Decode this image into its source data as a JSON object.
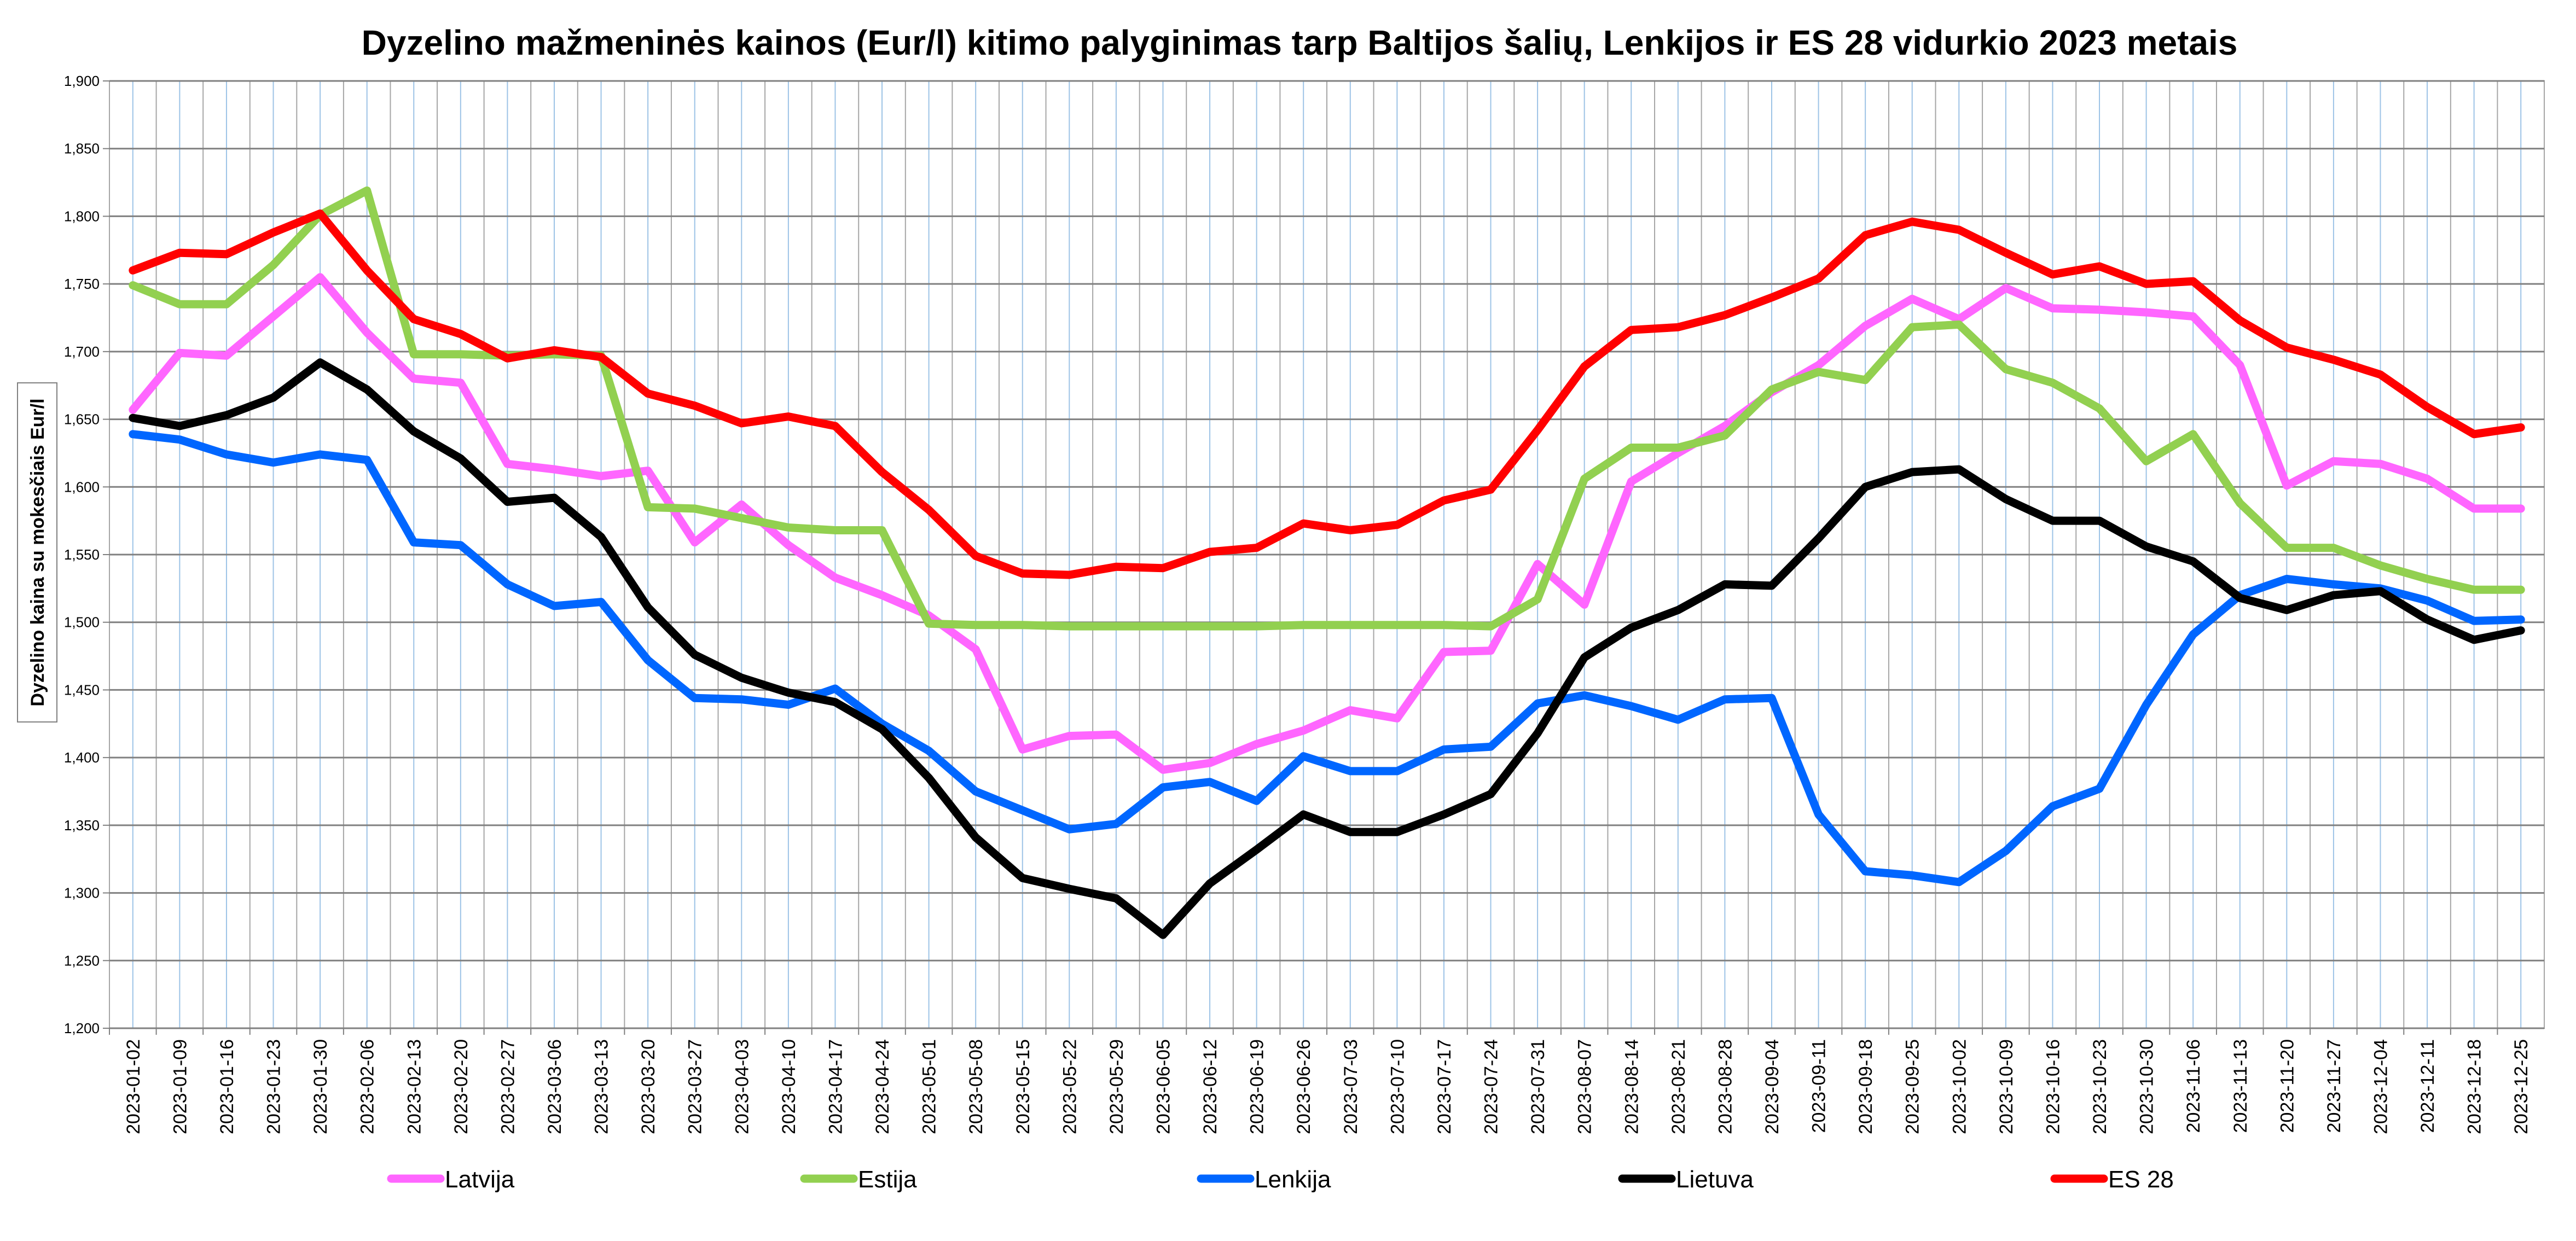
{
  "chart_data": {
    "type": "line",
    "title": "Dyzelino mažmeninės kainos (Eur/l) kitimo palyginimas tarp Baltijos šalių, Lenkijos ir ES 28 vidurkio 2023 metais",
    "xlabel": "",
    "ylabel": "Dyzelino kaina su mokesčiais Eur/l",
    "ylim": [
      1.2,
      1.9
    ],
    "yticks": [
      "1,200",
      "1,250",
      "1,300",
      "1,350",
      "1,400",
      "1,450",
      "1,500",
      "1,550",
      "1,600",
      "1,650",
      "1,700",
      "1,750",
      "1,800",
      "1,850",
      "1,900"
    ],
    "grid": true,
    "legend_position": "bottom",
    "x": [
      "2023-01-02",
      "2023-01-09",
      "2023-01-16",
      "2023-01-23",
      "2023-01-30",
      "2023-02-06",
      "2023-02-13",
      "2023-02-20",
      "2023-02-27",
      "2023-03-06",
      "2023-03-13",
      "2023-03-20",
      "2023-03-27",
      "2023-04-03",
      "2023-04-10",
      "2023-04-17",
      "2023-04-24",
      "2023-05-01",
      "2023-05-08",
      "2023-05-15",
      "2023-05-22",
      "2023-05-29",
      "2023-06-05",
      "2023-06-12",
      "2023-06-19",
      "2023-06-26",
      "2023-07-03",
      "2023-07-10",
      "2023-07-17",
      "2023-07-24",
      "2023-07-31",
      "2023-08-07",
      "2023-08-14",
      "2023-08-21",
      "2023-08-28",
      "2023-09-04",
      "2023-09-11",
      "2023-09-18",
      "2023-09-25",
      "2023-10-02",
      "2023-10-09",
      "2023-10-16",
      "2023-10-23",
      "2023-10-30",
      "2023-11-06",
      "2023-11-13",
      "2023-11-20",
      "2023-11-27",
      "2023-12-04",
      "2023-12-11",
      "2023-12-18",
      "2023-12-25"
    ],
    "series": [
      {
        "name": "Latvija",
        "color": "#ff66ff",
        "values": [
          1.657,
          1.699,
          1.697,
          1.726,
          1.755,
          1.714,
          1.68,
          1.677,
          1.617,
          1.613,
          1.608,
          1.612,
          1.559,
          1.587,
          1.557,
          1.533,
          1.52,
          1.505,
          1.48,
          1.406,
          1.416,
          1.417,
          1.391,
          1.396,
          1.41,
          1.42,
          1.435,
          1.429,
          1.478,
          1.479,
          1.543,
          1.513,
          1.604,
          1.625,
          1.645,
          1.67,
          1.69,
          1.719,
          1.739,
          1.724,
          1.747,
          1.732,
          1.731,
          1.729,
          1.726,
          1.69,
          1.601,
          1.619,
          1.617,
          1.606,
          1.584,
          1.584
        ]
      },
      {
        "name": "Estija",
        "color": "#92d050",
        "values": [
          1.749,
          1.735,
          1.735,
          1.764,
          1.801,
          1.819,
          1.698,
          1.698,
          1.697,
          1.698,
          1.697,
          1.585,
          1.584,
          1.577,
          1.57,
          1.568,
          1.568,
          1.499,
          1.498,
          1.498,
          1.497,
          1.497,
          1.497,
          1.497,
          1.497,
          1.498,
          1.498,
          1.498,
          1.498,
          1.497,
          1.517,
          1.606,
          1.629,
          1.629,
          1.638,
          1.672,
          1.685,
          1.679,
          1.718,
          1.72,
          1.687,
          1.677,
          1.658,
          1.619,
          1.639,
          1.588,
          1.555,
          1.555,
          1.542,
          1.532,
          1.524,
          1.524
        ]
      },
      {
        "name": "Lenkija",
        "color": "#0066ff",
        "values": [
          1.639,
          1.635,
          1.624,
          1.618,
          1.624,
          1.62,
          1.559,
          1.557,
          1.528,
          1.512,
          1.515,
          1.472,
          1.444,
          1.443,
          1.439,
          1.451,
          1.425,
          1.405,
          1.375,
          1.361,
          1.347,
          1.351,
          1.378,
          1.382,
          1.368,
          1.401,
          1.39,
          1.39,
          1.406,
          1.408,
          1.44,
          1.446,
          1.438,
          1.428,
          1.443,
          1.444,
          1.358,
          1.316,
          1.313,
          1.308,
          1.331,
          1.364,
          1.377,
          1.439,
          1.491,
          1.52,
          1.532,
          1.528,
          1.525,
          1.516,
          1.501,
          1.502
        ]
      },
      {
        "name": "Lietuva",
        "color": "#000000",
        "values": [
          1.651,
          1.645,
          1.653,
          1.666,
          1.692,
          1.672,
          1.641,
          1.621,
          1.589,
          1.592,
          1.563,
          1.511,
          1.476,
          1.459,
          1.448,
          1.441,
          1.421,
          1.385,
          1.341,
          1.311,
          1.303,
          1.296,
          1.269,
          1.307,
          1.332,
          1.358,
          1.345,
          1.345,
          1.358,
          1.373,
          1.418,
          1.474,
          1.496,
          1.509,
          1.528,
          1.527,
          1.562,
          1.6,
          1.611,
          1.613,
          1.591,
          1.575,
          1.575,
          1.556,
          1.545,
          1.518,
          1.509,
          1.52,
          1.523,
          1.502,
          1.487,
          1.494
        ]
      },
      {
        "name": "ES 28",
        "color": "#ff0000",
        "values": [
          1.76,
          1.773,
          1.772,
          1.788,
          1.802,
          1.76,
          1.724,
          1.713,
          1.695,
          1.701,
          1.696,
          1.669,
          1.66,
          1.647,
          1.652,
          1.645,
          1.611,
          1.583,
          1.549,
          1.536,
          1.535,
          1.541,
          1.54,
          1.552,
          1.555,
          1.573,
          1.568,
          1.572,
          1.59,
          1.598,
          1.642,
          1.689,
          1.716,
          1.718,
          1.727,
          1.74,
          1.754,
          1.786,
          1.796,
          1.79,
          1.773,
          1.757,
          1.763,
          1.75,
          1.752,
          1.723,
          1.703,
          1.694,
          1.683,
          1.659,
          1.639,
          1.644
        ]
      }
    ]
  }
}
